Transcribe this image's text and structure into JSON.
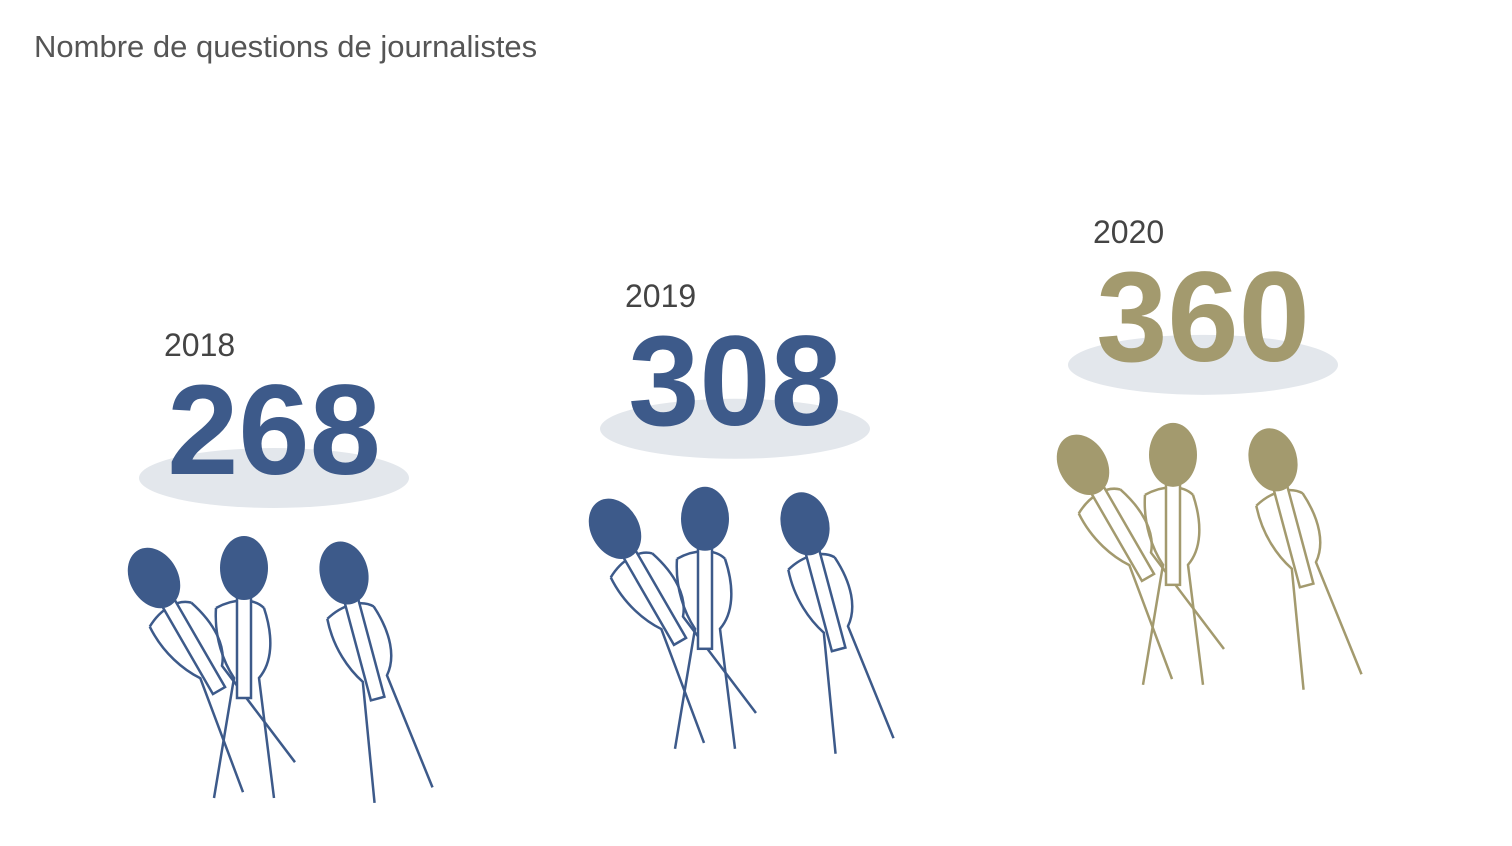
{
  "chart_data": {
    "type": "pictogram",
    "title": "Nombre de questions de journalistes",
    "categories": [
      "2018",
      "2019",
      "2020"
    ],
    "values": [
      268,
      308,
      360
    ],
    "colors": [
      "#3d5a8a",
      "#3d5a8a",
      "#a39a6e"
    ]
  }
}
